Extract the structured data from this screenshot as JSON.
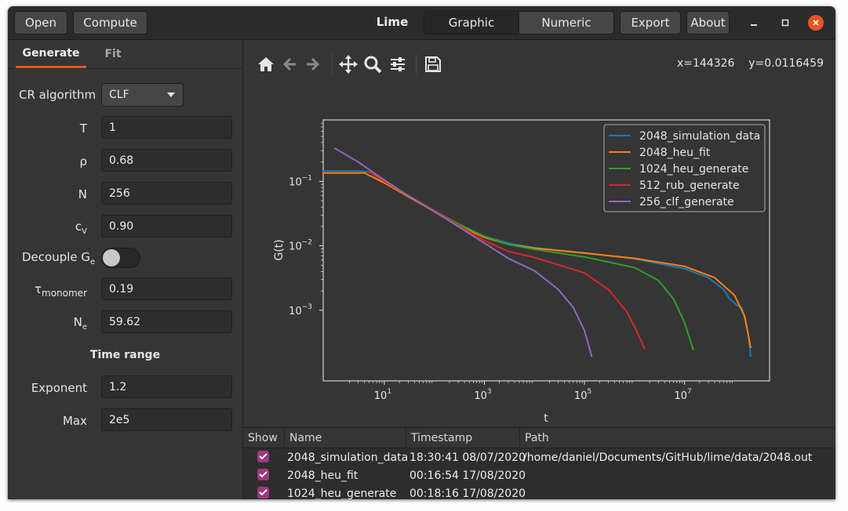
{
  "toolbar_buttons": {
    "open": "Open",
    "compute": "Compute",
    "export": "Export",
    "about": "About"
  },
  "app_title": "Lime",
  "view_tabs": {
    "graphic": "Graphic",
    "numeric": "Numeric"
  },
  "left_tabs": {
    "generate": "Generate",
    "fit": "Fit"
  },
  "form": {
    "algorithm_label": "CR algorithm",
    "algorithm_value": "CLF",
    "T_label": "T",
    "T_value": "1",
    "rho_label": "ρ",
    "rho_value": "0.68",
    "N_label": "N",
    "N_value": "256",
    "cv_label": "c",
    "cv_sub": "V",
    "cv_value": "0.90",
    "decouple_label": "Decouple G",
    "decouple_sub": "e",
    "decouple_on": false,
    "tau_label": "τ",
    "tau_sub": "monomer",
    "tau_value": "0.19",
    "Ne_label": "N",
    "Ne_sub": "e",
    "Ne_value": "59.62",
    "time_range_heading": "Time range",
    "exponent_label": "Exponent",
    "exponent_value": "1.2",
    "max_label": "Max",
    "max_value": "2e5"
  },
  "coords": {
    "x": "x=144326",
    "y": "y=0.0116459"
  },
  "chart_data": {
    "type": "line",
    "xlabel": "t",
    "ylabel": "G(t)",
    "xscale": "log",
    "yscale": "log",
    "xlim": [
      0.6,
      500000000
    ],
    "ylim": [
      8e-05,
      0.9
    ],
    "x_ticks": [
      "10^1",
      "10^3",
      "10^5",
      "10^7"
    ],
    "y_ticks": [
      "10^-3",
      "10^-2",
      "10^-1"
    ],
    "legend_position": "top-right",
    "series": [
      {
        "name": "2048_simulation_data",
        "color": "#1f77b4",
        "points": [
          [
            0.6,
            0.145
          ],
          [
            3,
            0.145
          ],
          [
            5,
            0.14
          ],
          [
            10,
            0.1
          ],
          [
            30,
            0.06
          ],
          [
            100,
            0.035
          ],
          [
            300,
            0.022
          ],
          [
            1000,
            0.014
          ],
          [
            3000,
            0.011
          ],
          [
            10000,
            0.0093
          ],
          [
            100000,
            0.0078
          ],
          [
            1000000,
            0.0063
          ],
          [
            10000000,
            0.0044
          ],
          [
            30000000,
            0.0032
          ],
          [
            60000000,
            0.0021
          ],
          [
            80000000,
            0.0015
          ],
          [
            110000000,
            0.0012
          ],
          [
            140000000,
            0.0011
          ],
          [
            160000000,
            0.00075
          ],
          [
            190000000,
            0.0004
          ],
          [
            210000000,
            0.00019
          ]
        ]
      },
      {
        "name": "2048_heu_fit",
        "color": "#ff7f0e",
        "points": [
          [
            0.6,
            0.135
          ],
          [
            4,
            0.135
          ],
          [
            10,
            0.095
          ],
          [
            30,
            0.058
          ],
          [
            100,
            0.034
          ],
          [
            300,
            0.021
          ],
          [
            1000,
            0.0135
          ],
          [
            3000,
            0.0105
          ],
          [
            10000,
            0.0092
          ],
          [
            100000,
            0.0077
          ],
          [
            1000000,
            0.0064
          ],
          [
            10000000,
            0.0048
          ],
          [
            40000000,
            0.0032
          ],
          [
            100000000,
            0.0017
          ],
          [
            160000000,
            0.0008
          ],
          [
            210000000,
            0.00026
          ]
        ]
      },
      {
        "name": "1024_heu_generate",
        "color": "#2ca02c",
        "points": [
          [
            5,
            0.14
          ],
          [
            10,
            0.1
          ],
          [
            30,
            0.06
          ],
          [
            100,
            0.035
          ],
          [
            300,
            0.022
          ],
          [
            1000,
            0.014
          ],
          [
            3000,
            0.0105
          ],
          [
            10000,
            0.0088
          ],
          [
            100000,
            0.0067
          ],
          [
            1000000,
            0.0046
          ],
          [
            3000000,
            0.0029
          ],
          [
            6000000,
            0.0015
          ],
          [
            10000000,
            0.00065
          ],
          [
            15000000,
            0.00024
          ]
        ]
      },
      {
        "name": "512_rub_generate",
        "color": "#d62728",
        "points": [
          [
            5,
            0.14
          ],
          [
            10,
            0.1
          ],
          [
            30,
            0.06
          ],
          [
            100,
            0.035
          ],
          [
            300,
            0.021
          ],
          [
            1000,
            0.012
          ],
          [
            3000,
            0.0082
          ],
          [
            10000,
            0.0066
          ],
          [
            100000,
            0.0038
          ],
          [
            300000,
            0.0021
          ],
          [
            700000,
            0.00095
          ],
          [
            1100000,
            0.00048
          ],
          [
            1600000,
            0.00025
          ]
        ]
      },
      {
        "name": "256_clf_generate",
        "color": "#9467bd",
        "points": [
          [
            1,
            0.33
          ],
          [
            3,
            0.2
          ],
          [
            10,
            0.105
          ],
          [
            30,
            0.06
          ],
          [
            100,
            0.034
          ],
          [
            300,
            0.02
          ],
          [
            1000,
            0.011
          ],
          [
            3000,
            0.0064
          ],
          [
            10000,
            0.0041
          ],
          [
            30000,
            0.0021
          ],
          [
            60000,
            0.0011
          ],
          [
            100000,
            0.00048
          ],
          [
            140000,
            0.00019
          ]
        ]
      }
    ]
  },
  "table": {
    "headers": [
      "Show",
      "Name",
      "Timestamp",
      "Path"
    ],
    "rows": [
      {
        "checked": true,
        "name": "2048_simulation_data",
        "timestamp": "18:30:41  08/07/2020",
        "path": "/home/daniel/Documents/GitHub/lime/data/2048.out"
      },
      {
        "checked": true,
        "name": "2048_heu_fit",
        "timestamp": "00:16:54  17/08/2020",
        "path": ""
      },
      {
        "checked": true,
        "name": "1024_heu_generate",
        "timestamp": "00:18:16  17/08/2020",
        "path": ""
      }
    ]
  }
}
